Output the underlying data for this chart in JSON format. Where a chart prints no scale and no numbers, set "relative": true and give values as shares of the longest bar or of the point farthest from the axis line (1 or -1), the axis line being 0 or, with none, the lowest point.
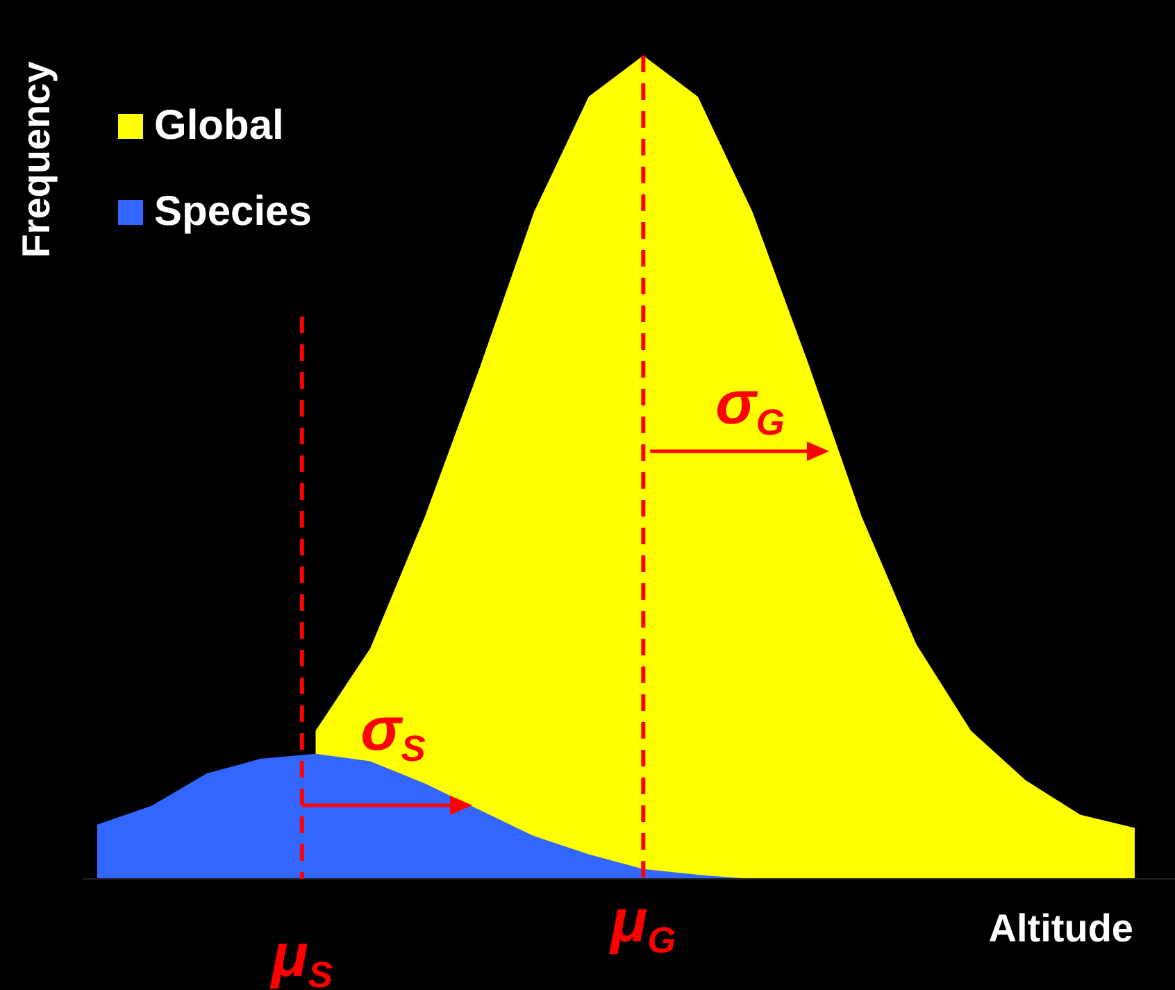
{
  "chart_data": {
    "type": "area",
    "relative": true,
    "xlabel": "Altitude",
    "ylabel": "Frequency",
    "categories": [
      null,
      null,
      null,
      null,
      null,
      null,
      null,
      null,
      null,
      null,
      null,
      null,
      null,
      null,
      null,
      null,
      null,
      null,
      null,
      null
    ],
    "series": [
      {
        "name": "Global",
        "color": "#ffff00",
        "values": [
          null,
          null,
          null,
          null,
          0.18,
          0.28,
          0.44,
          0.62,
          0.81,
          0.95,
          1,
          0.95,
          0.81,
          0.63,
          0.44,
          0.285,
          0.18,
          0.12,
          0.078,
          0.062
        ]
      },
      {
        "name": "Species",
        "color": "#3366ff",
        "values": [
          0.066,
          0.089,
          0.128,
          0.146,
          0.152,
          0.143,
          0.116,
          0.084,
          0.052,
          0.03,
          0.012,
          0.005,
          0,
          0,
          0,
          0,
          0,
          0,
          0,
          0
        ]
      }
    ],
    "annotations": [
      "σ$_{S}$",
      "σ$_{G}$",
      "μ$_{S}$",
      "μ$_{G}$"
    ],
    "legend": "top left"
  }
}
